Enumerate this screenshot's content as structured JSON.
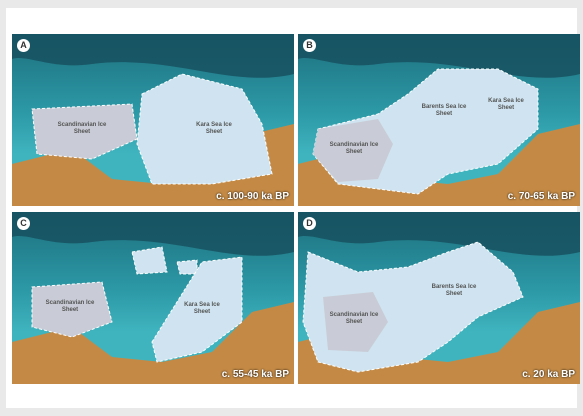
{
  "panels": [
    {
      "letter": "A",
      "caption": "c. 100-90 ka BP",
      "ice_sheets": [
        "Scandinavian Ice Sheet",
        "Kara Sea Ice Sheet"
      ]
    },
    {
      "letter": "B",
      "caption": "c. 70-65 ka BP",
      "ice_sheets": [
        "Barents Sea Ice Sheet",
        "Kara Sea Ice Sheet",
        "Scandinavian Ice Sheet"
      ]
    },
    {
      "letter": "C",
      "caption": "c. 55-45 ka BP",
      "ice_sheets": [
        "Scandinavian Ice Sheet",
        "Kara Sea Ice Sheet"
      ]
    },
    {
      "letter": "D",
      "caption": "c. 20 ka BP",
      "ice_sheets": [
        "Barents Sea Ice Sheet",
        "Scandinavian Ice Sheet"
      ]
    }
  ]
}
